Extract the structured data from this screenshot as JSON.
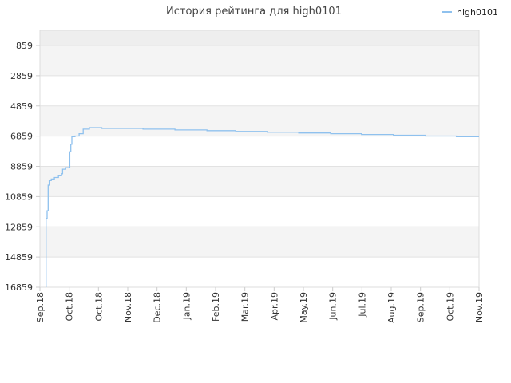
{
  "chart_data": {
    "type": "line",
    "title": "История рейтинга для high0101",
    "y_inverted": true,
    "ylim": [
      859,
      16859
    ],
    "y_ticks": [
      "859",
      "2859",
      "4859",
      "6859",
      "8859",
      "10859",
      "12859",
      "14859",
      "16859"
    ],
    "x_ticks": [
      "Sep.18",
      "Oct.18",
      "Oct.18",
      "Nov.18",
      "Dec.18",
      "Jan.19",
      "Feb.19",
      "Mar.19",
      "Apr.19",
      "May.19",
      "Jun.19",
      "Jul.19",
      "Aug.19",
      "Sep.19",
      "Oct.19",
      "Nov.19"
    ],
    "grid": true,
    "banded_background": true,
    "legend_position": "top-right",
    "series": [
      {
        "name": "high0101",
        "color": "#8fc1ee",
        "points": [
          {
            "x": "2018-09-07",
            "y": 16859
          },
          {
            "x": "2018-09-07",
            "y": 12300
          },
          {
            "x": "2018-09-08",
            "y": 11800
          },
          {
            "x": "2018-09-09",
            "y": 10600
          },
          {
            "x": "2018-09-09",
            "y": 10100
          },
          {
            "x": "2018-09-10",
            "y": 9800
          },
          {
            "x": "2018-09-12",
            "y": 9700
          },
          {
            "x": "2018-09-15",
            "y": 9600
          },
          {
            "x": "2018-09-19",
            "y": 9450
          },
          {
            "x": "2018-09-22",
            "y": 9350
          },
          {
            "x": "2018-09-23",
            "y": 9050
          },
          {
            "x": "2018-09-26",
            "y": 8950
          },
          {
            "x": "2018-09-30",
            "y": 8850
          },
          {
            "x": "2018-09-30",
            "y": 7900
          },
          {
            "x": "2018-10-01",
            "y": 7400
          },
          {
            "x": "2018-10-02",
            "y": 6900
          },
          {
            "x": "2018-10-05",
            "y": 6850
          },
          {
            "x": "2018-10-09",
            "y": 6700
          },
          {
            "x": "2018-10-13",
            "y": 6400
          },
          {
            "x": "2018-10-18",
            "y": 6400
          },
          {
            "x": "2018-10-19",
            "y": 6300
          },
          {
            "x": "2018-10-24",
            "y": 6300
          },
          {
            "x": "2018-10-31",
            "y": 6350
          },
          {
            "x": "2018-11-10",
            "y": 6350
          },
          {
            "x": "2018-12-10",
            "y": 6400
          },
          {
            "x": "2019-01-10",
            "y": 6450
          },
          {
            "x": "2019-02-10",
            "y": 6500
          },
          {
            "x": "2019-03-10",
            "y": 6550
          },
          {
            "x": "2019-04-10",
            "y": 6600
          },
          {
            "x": "2019-05-10",
            "y": 6650
          },
          {
            "x": "2019-06-10",
            "y": 6700
          },
          {
            "x": "2019-07-10",
            "y": 6750
          },
          {
            "x": "2019-08-10",
            "y": 6800
          },
          {
            "x": "2019-09-10",
            "y": 6850
          },
          {
            "x": "2019-10-10",
            "y": 6900
          },
          {
            "x": "2019-11-01",
            "y": 6900
          }
        ]
      }
    ]
  }
}
